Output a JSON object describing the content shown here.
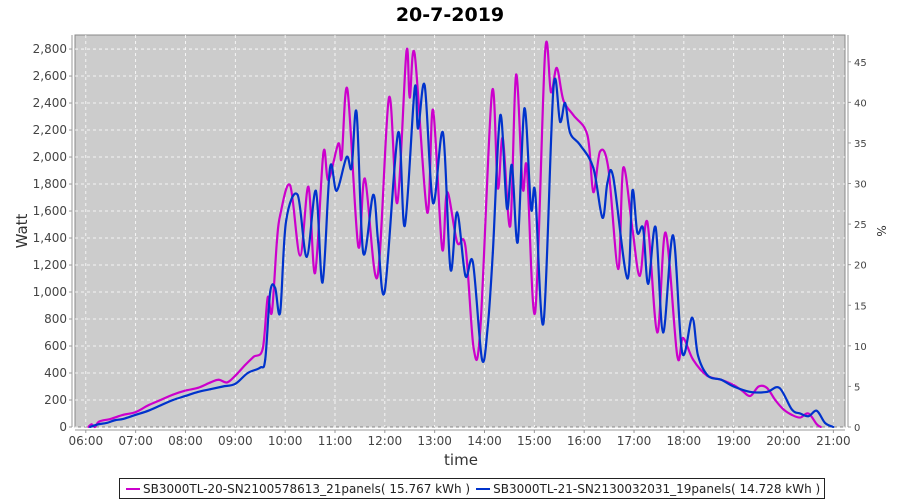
{
  "chart_data": {
    "type": "line",
    "title": "20-7-2019",
    "xlabel": "time",
    "ylabel": "Watt",
    "y2label": "%",
    "xlim": [
      "05:47",
      "21:14"
    ],
    "ylim": [
      0,
      2904
    ],
    "y2lim": [
      0,
      48.3
    ],
    "x_ticks": [
      "06:00",
      "07:00",
      "08:00",
      "09:00",
      "10:00",
      "11:00",
      "12:00",
      "13:00",
      "14:00",
      "15:00",
      "16:00",
      "17:00",
      "18:00",
      "19:00",
      "20:00",
      "21:00"
    ],
    "y_ticks": [
      "0",
      "200",
      "400",
      "600",
      "800",
      "1,000",
      "1,200",
      "1,400",
      "1,600",
      "1,800",
      "2,000",
      "2,200",
      "2,400",
      "2,600",
      "2,800"
    ],
    "y2_ticks": [
      "0",
      "5",
      "10",
      "15",
      "20",
      "25",
      "30",
      "35",
      "40",
      "45"
    ],
    "grid": true,
    "background": "#cccccc",
    "legend_placement": "bottom",
    "series": [
      {
        "name": "SB3000TL-20-SN2100578613_21panels( 15.767 kWh )",
        "color": "#cc00cc",
        "points": [
          [
            "06:03",
            0
          ],
          [
            "06:07",
            20
          ],
          [
            "06:11",
            0
          ],
          [
            "06:16",
            40
          ],
          [
            "06:30",
            60
          ],
          [
            "06:45",
            90
          ],
          [
            "07:00",
            110
          ],
          [
            "07:15",
            160
          ],
          [
            "07:30",
            200
          ],
          [
            "07:45",
            240
          ],
          [
            "08:00",
            270
          ],
          [
            "08:15",
            290
          ],
          [
            "08:30",
            330
          ],
          [
            "08:40",
            350
          ],
          [
            "08:50",
            330
          ],
          [
            "09:00",
            380
          ],
          [
            "09:12",
            460
          ],
          [
            "09:22",
            520
          ],
          [
            "09:33",
            580
          ],
          [
            "09:39",
            960
          ],
          [
            "09:44",
            850
          ],
          [
            "09:50",
            1370
          ],
          [
            "09:54",
            1570
          ],
          [
            "10:06",
            1790
          ],
          [
            "10:18",
            1270
          ],
          [
            "10:28",
            1780
          ],
          [
            "10:36",
            1140
          ],
          [
            "10:46",
            2030
          ],
          [
            "10:52",
            1830
          ],
          [
            "11:04",
            2100
          ],
          [
            "11:08",
            1990
          ],
          [
            "11:15",
            2500
          ],
          [
            "11:28",
            1340
          ],
          [
            "11:36",
            1840
          ],
          [
            "11:51",
            1110
          ],
          [
            "12:05",
            2440
          ],
          [
            "12:15",
            1660
          ],
          [
            "12:26",
            2780
          ],
          [
            "12:30",
            2440
          ],
          [
            "12:36",
            2760
          ],
          [
            "12:51",
            1590
          ],
          [
            "12:58",
            2350
          ],
          [
            "13:09",
            1320
          ],
          [
            "13:15",
            1740
          ],
          [
            "13:27",
            1370
          ],
          [
            "13:37",
            1340
          ],
          [
            "13:47",
            580
          ],
          [
            "13:55",
            730
          ],
          [
            "14:09",
            2480
          ],
          [
            "14:16",
            1770
          ],
          [
            "14:22",
            2140
          ],
          [
            "14:31",
            1490
          ],
          [
            "14:38",
            2610
          ],
          [
            "14:46",
            1770
          ],
          [
            "14:51",
            1920
          ],
          [
            "15:01",
            850
          ],
          [
            "15:13",
            2780
          ],
          [
            "15:20",
            2480
          ],
          [
            "15:27",
            2660
          ],
          [
            "15:35",
            2420
          ],
          [
            "15:47",
            2310
          ],
          [
            "16:04",
            2160
          ],
          [
            "16:11",
            1740
          ],
          [
            "16:19",
            2040
          ],
          [
            "16:29",
            1920
          ],
          [
            "16:41",
            1170
          ],
          [
            "16:47",
            1920
          ],
          [
            "16:58",
            1470
          ],
          [
            "17:07",
            1120
          ],
          [
            "17:16",
            1520
          ],
          [
            "17:28",
            700
          ],
          [
            "17:38",
            1440
          ],
          [
            "17:52",
            530
          ],
          [
            "17:59",
            660
          ],
          [
            "18:11",
            500
          ],
          [
            "18:28",
            380
          ],
          [
            "18:45",
            350
          ],
          [
            "19:00",
            310
          ],
          [
            "19:10",
            270
          ],
          [
            "19:20",
            230
          ],
          [
            "19:30",
            300
          ],
          [
            "19:40",
            290
          ],
          [
            "19:50",
            200
          ],
          [
            "20:00",
            130
          ],
          [
            "20:10",
            90
          ],
          [
            "20:20",
            70
          ],
          [
            "20:30",
            100
          ],
          [
            "20:40",
            20
          ],
          [
            "20:45",
            0
          ]
        ]
      },
      {
        "name": "SB3000TL-21-SN2130032031_19panels( 14.728 kWh )",
        "color": "#0033cc",
        "points": [
          [
            "06:05",
            0
          ],
          [
            "06:15",
            20
          ],
          [
            "06:25",
            30
          ],
          [
            "06:35",
            50
          ],
          [
            "06:45",
            60
          ],
          [
            "07:00",
            90
          ],
          [
            "07:15",
            120
          ],
          [
            "07:30",
            160
          ],
          [
            "07:45",
            200
          ],
          [
            "08:00",
            230
          ],
          [
            "08:15",
            260
          ],
          [
            "08:30",
            280
          ],
          [
            "08:45",
            300
          ],
          [
            "09:00",
            320
          ],
          [
            "09:15",
            400
          ],
          [
            "09:30",
            440
          ],
          [
            "09:36",
            500
          ],
          [
            "09:42",
            1000
          ],
          [
            "09:48",
            1030
          ],
          [
            "09:54",
            850
          ],
          [
            "10:01",
            1520
          ],
          [
            "10:15",
            1720
          ],
          [
            "10:26",
            1260
          ],
          [
            "10:37",
            1750
          ],
          [
            "10:45",
            1070
          ],
          [
            "10:54",
            1920
          ],
          [
            "11:02",
            1750
          ],
          [
            "11:14",
            2000
          ],
          [
            "11:20",
            1920
          ],
          [
            "11:26",
            2330
          ],
          [
            "11:34",
            1290
          ],
          [
            "11:46",
            1720
          ],
          [
            "11:52",
            1370
          ],
          [
            "12:00",
            1010
          ],
          [
            "12:16",
            2180
          ],
          [
            "12:24",
            1490
          ],
          [
            "12:36",
            2510
          ],
          [
            "12:40",
            2210
          ],
          [
            "12:48",
            2530
          ],
          [
            "12:58",
            1660
          ],
          [
            "13:10",
            2180
          ],
          [
            "13:19",
            1170
          ],
          [
            "13:27",
            1590
          ],
          [
            "13:37",
            1120
          ],
          [
            "13:46",
            1220
          ],
          [
            "13:57",
            500
          ],
          [
            "14:04",
            750
          ],
          [
            "14:10",
            1290
          ],
          [
            "14:19",
            2310
          ],
          [
            "14:27",
            1620
          ],
          [
            "14:33",
            1940
          ],
          [
            "14:40",
            1370
          ],
          [
            "14:48",
            2360
          ],
          [
            "14:56",
            1620
          ],
          [
            "15:01",
            1740
          ],
          [
            "15:11",
            770
          ],
          [
            "15:23",
            2510
          ],
          [
            "15:31",
            2260
          ],
          [
            "15:37",
            2400
          ],
          [
            "15:43",
            2180
          ],
          [
            "15:55",
            2090
          ],
          [
            "16:11",
            1920
          ],
          [
            "16:22",
            1550
          ],
          [
            "16:28",
            1810
          ],
          [
            "16:35",
            1850
          ],
          [
            "16:52",
            1100
          ],
          [
            "16:58",
            1750
          ],
          [
            "17:04",
            1440
          ],
          [
            "17:11",
            1470
          ],
          [
            "17:17",
            1060
          ],
          [
            "17:26",
            1480
          ],
          [
            "17:35",
            700
          ],
          [
            "17:47",
            1420
          ],
          [
            "17:58",
            550
          ],
          [
            "18:10",
            810
          ],
          [
            "18:17",
            530
          ],
          [
            "18:29",
            380
          ],
          [
            "18:45",
            350
          ],
          [
            "19:00",
            300
          ],
          [
            "19:20",
            260
          ],
          [
            "19:40",
            260
          ],
          [
            "19:55",
            290
          ],
          [
            "20:10",
            130
          ],
          [
            "20:20",
            100
          ],
          [
            "20:30",
            80
          ],
          [
            "20:40",
            120
          ],
          [
            "20:50",
            30
          ],
          [
            "21:00",
            0
          ]
        ]
      }
    ]
  }
}
